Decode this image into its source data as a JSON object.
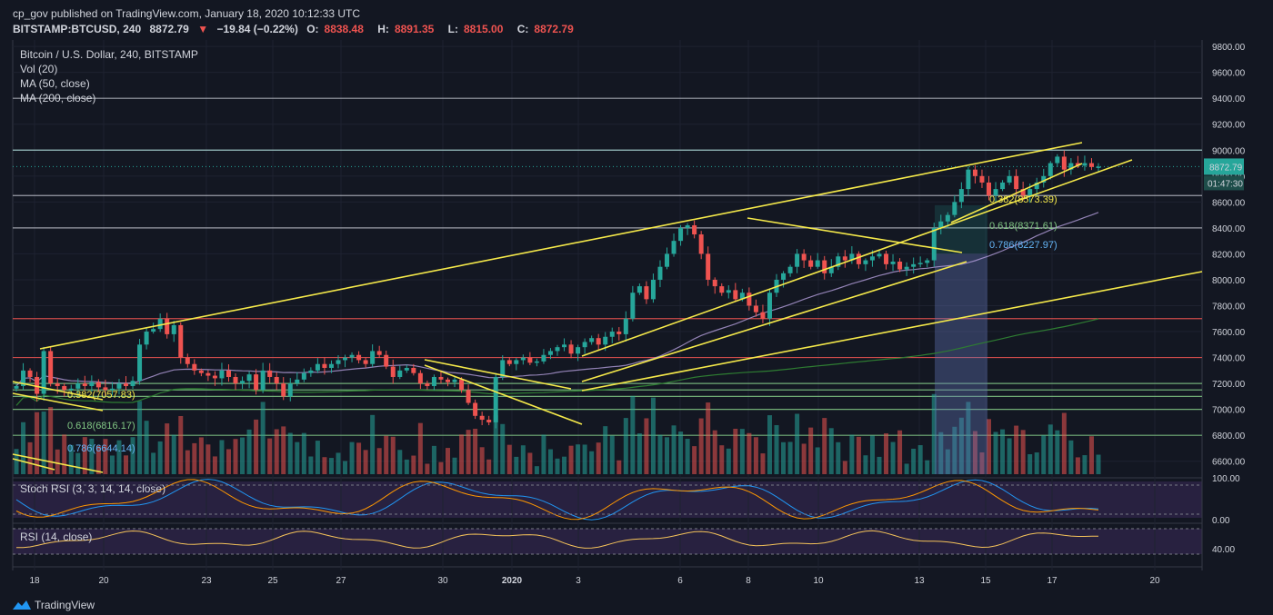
{
  "header": {
    "published": "cp_gov published on TradingView.com, January 18, 2020 10:12:33 UTC",
    "symbol": "BITSTAMP:BTCUSD, 240",
    "last": "8872.79",
    "change": "−19.84 (−0.22%)",
    "o_label": "O:",
    "o": "8838.48",
    "h_label": "H:",
    "h": "8891.35",
    "l_label": "L:",
    "l": "8815.00",
    "c_label": "C:",
    "c": "8872.79"
  },
  "legend": {
    "title": "Bitcoin / U.S. Dollar, 240, BITSTAMP",
    "vol": "Vol (20)",
    "ma50": "MA (50, close)",
    "ma200": "MA (200, close)",
    "stoch": "Stoch RSI (3, 3, 14, 14, close)",
    "rsi": "RSI (14, close)"
  },
  "brand": "TradingView",
  "colors": {
    "background": "#131722",
    "bull": "#26a69a",
    "bear": "#ef5350",
    "trendline": "#f5e94a",
    "ma50": "#b39ddb",
    "ma200": "#2e7d32",
    "price_tag": "#26a69a"
  },
  "chart_data": {
    "type": "candlestick",
    "price_axis": [
      "9800.00",
      "9600.00",
      "9400.00",
      "9200.00",
      "9000.00",
      "8800.00",
      "8600.00",
      "8400.00",
      "8200.00",
      "8000.00",
      "7800.00",
      "7600.00",
      "7400.00",
      "7200.00",
      "7000.00",
      "6800.00",
      "6600.00"
    ],
    "price_ylim": [
      6500,
      9850
    ],
    "current_price": "8872.79",
    "countdown": "01:47:30",
    "time_axis": [
      "18",
      "20",
      "23",
      "25",
      "27",
      "30",
      "2020",
      "3",
      "6",
      "8",
      "10",
      "13",
      "15",
      "17",
      "20"
    ],
    "horizontal_levels": [
      {
        "price": 9400,
        "color": "#b2b5be"
      },
      {
        "price": 9000,
        "color": "#b2dfdb"
      },
      {
        "price": 8650,
        "color": "#b2b5be"
      },
      {
        "price": 8400,
        "color": "#b2b5be"
      },
      {
        "price": 7700,
        "color": "#ef5350"
      },
      {
        "price": 7400,
        "color": "#ef5350"
      },
      {
        "price": 7200,
        "color": "#81c784"
      },
      {
        "price": 7150,
        "color": "#81c784"
      },
      {
        "price": 7100,
        "color": "#81c784"
      },
      {
        "price": 7000,
        "color": "#81c784"
      },
      {
        "price": 6800,
        "color": "#81c784"
      }
    ],
    "fib_labels": [
      {
        "text": "0.382(7057.83)",
        "color": "#f5e94a"
      },
      {
        "text": "0.618(6816.17)",
        "color": "#81c784"
      },
      {
        "text": "0.786(6644.14)",
        "color": "#64b5f6"
      },
      {
        "text": "0.382(8573.39)",
        "color": "#f5e94a"
      },
      {
        "text": "0.618(8371.61)",
        "color": "#81c784"
      },
      {
        "text": "0.786(8227.97)",
        "color": "#64b5f6"
      }
    ],
    "stoch_axis": [
      "100.00",
      "0.00"
    ],
    "rsi_axis": [
      "40.00"
    ],
    "series_candles": [
      7180,
      7300,
      7250,
      7120,
      7450,
      7200,
      7180,
      7150,
      7160,
      7200,
      7180,
      7210,
      7170,
      7150,
      7160,
      7200,
      7180,
      7220,
      7500,
      7600,
      7620,
      7700,
      7580,
      7650,
      7400,
      7350,
      7300,
      7280,
      7260,
      7240,
      7300,
      7250,
      7200,
      7220,
      7270,
      7150,
      7300,
      7250,
      7200,
      7100,
      7200,
      7230,
      7280,
      7300,
      7350,
      7320,
      7350,
      7380,
      7400,
      7420,
      7380,
      7350,
      7450,
      7420,
      7330,
      7250,
      7300,
      7320,
      7280,
      7200,
      7180,
      7250,
      7230,
      7210,
      7230,
      7150,
      7050,
      6950,
      6920,
      6900,
      7250,
      7380,
      7350,
      7380,
      7400,
      7360,
      7370,
      7420,
      7450,
      7480,
      7500,
      7430,
      7480,
      7520,
      7550,
      7500,
      7560,
      7600,
      7580,
      7700,
      7900,
      7950,
      7850,
      8000,
      8100,
      8200,
      8300,
      8400,
      8420,
      8350,
      8200,
      8000,
      7950,
      7900,
      7920,
      7850,
      7900,
      7800,
      7750,
      7700,
      7900,
      8000,
      8050,
      8100,
      8200,
      8150,
      8100,
      8150,
      8050,
      8100,
      8180,
      8150,
      8200,
      8120,
      8150,
      8180,
      8200,
      8120,
      8140,
      8080,
      8100,
      8120,
      8130,
      8150,
      8400,
      8450,
      8500,
      8600,
      8700,
      8850,
      8800,
      8750,
      8650,
      8700,
      8750,
      8800,
      8700,
      8650,
      8700,
      8750,
      8800,
      8900,
      8950,
      8850,
      8900,
      8880,
      8900,
      8870,
      8872.79
    ]
  }
}
